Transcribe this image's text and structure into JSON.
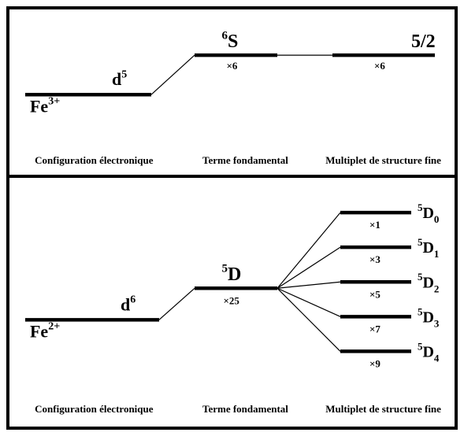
{
  "colors": {
    "stroke": "#000000",
    "bg": "#ffffff"
  },
  "typography": {
    "fontFamily": "Times New Roman, serif",
    "fontWeight": "bold"
  },
  "columnHeaders": {
    "config": "Configuration électronique",
    "term": "Terme fondamental",
    "multiplet": "Multiplet de structure fine",
    "fontSize": 13
  },
  "lineWidths": {
    "thick": 4.5,
    "thin": 1.2
  },
  "topPanel": {
    "ion": {
      "symbol": "Fe",
      "charge": "3+",
      "fontSize": 22,
      "chargeFontSize": 14
    },
    "config": {
      "base": "d",
      "exp": "5",
      "fontSize": 22,
      "expFontSize": 14
    },
    "term": {
      "mult": "6",
      "letter": "S",
      "fontSize": 24,
      "multFontSize": 15
    },
    "termDegeneracy": "×6",
    "multiplet": {
      "label": "5/2",
      "fontSize": 24,
      "degeneracy": "×6"
    },
    "degeneracyFontSize": 13,
    "geometry": {
      "baselineY": 108,
      "termY": 58,
      "xIonStart": 20,
      "xIonEnd": 40,
      "xConfigStart": 40,
      "xConfigEnd": 180,
      "xTermStart": 235,
      "xTermEnd": 340,
      "xMultStart": 410,
      "xMultEnd": 540
    }
  },
  "bottomPanel": {
    "ion": {
      "symbol": "Fe",
      "charge": "2+",
      "fontSize": 22,
      "chargeFontSize": 14
    },
    "config": {
      "base": "d",
      "exp": "6",
      "fontSize": 22,
      "expFontSize": 14
    },
    "term": {
      "mult": "5",
      "letter": "D",
      "fontSize": 24,
      "multFontSize": 15
    },
    "termDegeneracy": "×25",
    "degeneracyFontSize": 13,
    "multiplets": [
      {
        "mult": "5",
        "letter": "D",
        "sub": "0",
        "degeneracy": "×1"
      },
      {
        "mult": "5",
        "letter": "D",
        "sub": "1",
        "degeneracy": "×3"
      },
      {
        "mult": "5",
        "letter": "D",
        "sub": "2",
        "degeneracy": "×5"
      },
      {
        "mult": "5",
        "letter": "D",
        "sub": "3",
        "degeneracy": "×7"
      },
      {
        "mult": "5",
        "letter": "D",
        "sub": "4",
        "degeneracy": "×9"
      }
    ],
    "multipletFontSize": 20,
    "multipletSubFontSize": 13,
    "geometry": {
      "baselineY": 180,
      "termY": 140,
      "xIonStart": 20,
      "xIonEnd": 52,
      "xConfigStart": 52,
      "xConfigEnd": 190,
      "xTermStart": 235,
      "xTermEnd": 340,
      "fanOriginX": 340,
      "xMultStart": 420,
      "xMultEnd": 510,
      "multipletYs": [
        44,
        88,
        132,
        176,
        220
      ]
    }
  }
}
